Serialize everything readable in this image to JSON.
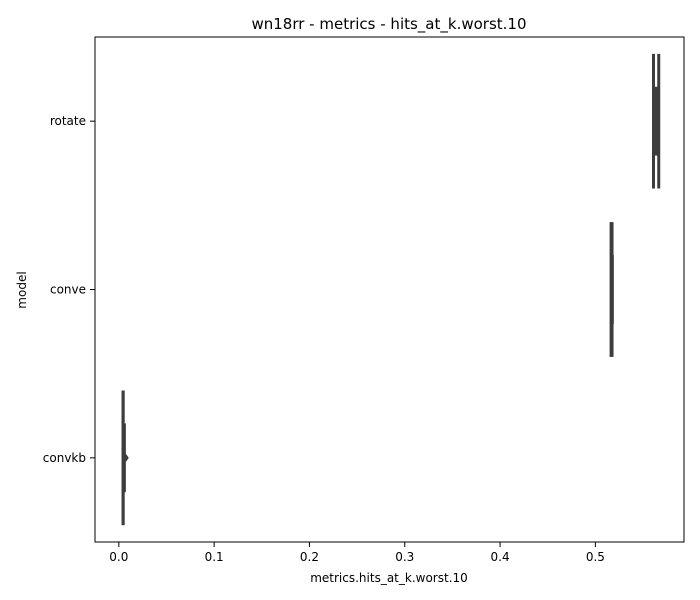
{
  "chart_data": {
    "type": "box",
    "title": "wn18rr - metrics - hits_at_k.worst.10",
    "xlabel": "metrics.hits_at_k.worst.10",
    "ylabel": "model",
    "xlim": [
      -0.025,
      0.593
    ],
    "xticks": [
      "0.0",
      "0.1",
      "0.2",
      "0.3",
      "0.4",
      "0.5"
    ],
    "xtick_values": [
      0.0,
      0.1,
      0.2,
      0.3,
      0.4,
      0.5
    ],
    "categories": [
      "rotate",
      "conve",
      "convkb"
    ],
    "boxes": [
      {
        "category": "rotate",
        "whislo": 0.561,
        "q1": 0.561,
        "med": 0.566,
        "q3": 0.5665,
        "whishi": 0.5665,
        "fliers": []
      },
      {
        "category": "conve",
        "whislo": 0.5165,
        "q1": 0.5165,
        "med": 0.5175,
        "q3": 0.5175,
        "whishi": 0.5175,
        "fliers": []
      },
      {
        "category": "convkb",
        "whislo": 0.0045,
        "q1": 0.0045,
        "med": 0.0045,
        "q3": 0.0045,
        "whishi": 0.0045,
        "fliers": [
          0.0075
        ]
      }
    ],
    "grid": false,
    "colors": {
      "line": "#3d3d3d",
      "box_fill": "#3d3d3d",
      "axis": "#000000"
    }
  }
}
